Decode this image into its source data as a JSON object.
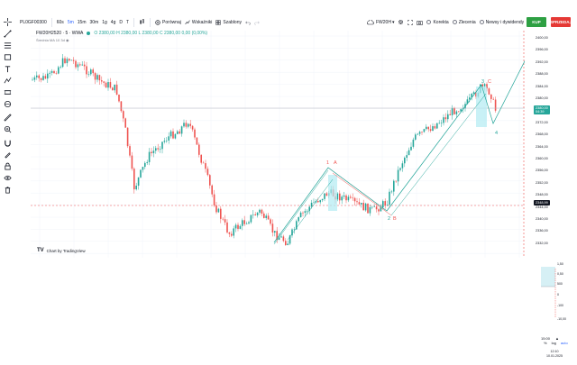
{
  "toolbar": {
    "symbol": "PL0GF00300",
    "intervals": [
      "60s",
      "5m",
      "15m",
      "30m",
      "1g",
      "4g",
      "D",
      "T"
    ],
    "active_interval": "5m",
    "compare_label": "Porównaj",
    "indicators_label": "Wskaźniki",
    "templates_label": "Szablony",
    "account_label": "FW20H",
    "checkboxes": [
      "Korekta",
      "Zlecenia",
      "Newsy i dywidendy"
    ],
    "buy_label": "KUP",
    "sell_label": "SPRZEDAJ"
  },
  "legend": {
    "title": "FW20H2520 · 5 · WWA",
    "ohlc": "O 2380,00  H 2380,00  L 2380,00  C 2380,00  0,00 (0,00%)",
    "indicator": "Średnia MA 10 3d"
  },
  "price_axis": {
    "ticks": [
      "2400,00",
      "2396,00",
      "2392,00",
      "2388,00",
      "2384,00",
      "2380,00",
      "2376,00",
      "2372,00",
      "2368,00",
      "2364,00",
      "2360,00",
      "2356,00",
      "2352,00",
      "2348,00",
      "2344,00",
      "2340,00",
      "2336,00",
      "2332,00"
    ],
    "current_price": "2380,00",
    "current_time": "04:39",
    "dashed_price": "2348,99"
  },
  "waves": {
    "labels": [
      "1",
      "A",
      "2",
      "B",
      "3",
      "C",
      "4",
      "5"
    ]
  },
  "attribution": "Chart by TradingView",
  "mini_panel": {
    "labels": [
      "1,50",
      "0,50",
      "500",
      "0",
      "-100",
      "-10,00"
    ]
  },
  "bottom": {
    "pct_label": "%",
    "log_label": "log",
    "auto_label": "auto",
    "time": "12:10",
    "date": "10.01.2025",
    "timezone_value": "15:00"
  },
  "colors": {
    "up": "#26a69a",
    "down": "#ef5350",
    "buy": "#2ea043",
    "sell": "#e53935",
    "accent": "#2962ff"
  }
}
